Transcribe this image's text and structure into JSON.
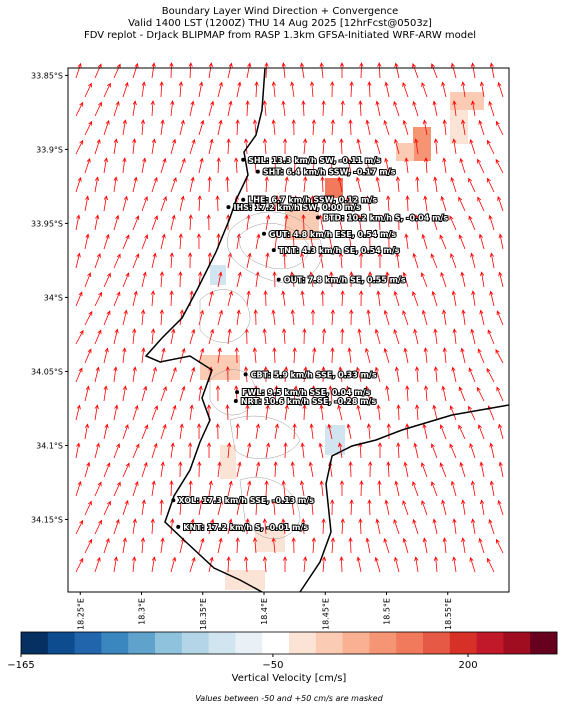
{
  "header": {
    "title_lines": [
      "Boundary Layer Wind Direction + Convergence",
      "Valid 1400 LST (1200Z) THU 14 Aug 2025 [12hrFcst@0503z]",
      "FDV replot - DrJack BLIPMAP from RASP 1.3km GFSA-Initiated WRF-ARW model"
    ]
  },
  "map": {
    "xlim": [
      18.24,
      18.6
    ],
    "ylim": [
      -34.199,
      -33.845
    ],
    "lat_ticks": [
      {
        "value": -33.85,
        "label": "33.85°S"
      },
      {
        "value": -33.9,
        "label": "33.9°S"
      },
      {
        "value": -33.95,
        "label": "33.95°S"
      },
      {
        "value": -34.0,
        "label": "34°S"
      },
      {
        "value": -34.05,
        "label": "34.05°S"
      },
      {
        "value": -34.1,
        "label": "34.1°S"
      },
      {
        "value": -34.15,
        "label": "34.15°S"
      }
    ],
    "lon_ticks": [
      {
        "value": 18.25,
        "label": "18.25°E"
      },
      {
        "value": 18.3,
        "label": "18.3°E"
      },
      {
        "value": 18.35,
        "label": "18.35°E"
      },
      {
        "value": 18.4,
        "label": "18.4°E"
      },
      {
        "value": 18.45,
        "label": "18.45°E"
      },
      {
        "value": 18.5,
        "label": "18.5°E"
      },
      {
        "value": 18.55,
        "label": "18.55°E"
      }
    ],
    "arrow_color": "#ff0000",
    "stations": [
      {
        "label": "SHL: 13.3 km/h SW, -0.11 m/s",
        "lon": 18.383,
        "lat": -33.907
      },
      {
        "label": "SHT: 6.4 km/h SSW, -0.17 m/s",
        "lon": 18.395,
        "lat": -33.915
      },
      {
        "label": "LHE: 6.7 km/h SSW, 0.12 m/s",
        "lon": 18.383,
        "lat": -33.934
      },
      {
        "label": "IHS: 17.2 km/h SW, 0.00 m/s",
        "lon": 18.371,
        "lat": -33.939
      },
      {
        "label": "BTD: 10.2 km/h S, -0.04 m/s",
        "lon": 18.444,
        "lat": -33.946
      },
      {
        "label": "GUT: 4.8 km/h ESE, 0.54 m/s",
        "lon": 18.4,
        "lat": -33.957
      },
      {
        "label": "TNT: 4.3 km/h SE, 0.54 m/s",
        "lon": 18.408,
        "lat": -33.968
      },
      {
        "label": "OUT: 7.8 km/h SE, 0.55 m/s",
        "lon": 18.412,
        "lat": -33.988
      },
      {
        "label": "CBT: 5.9 km/h SSE, 0.33 m/s",
        "lon": 18.385,
        "lat": -34.052
      },
      {
        "label": "FWL: 9.5 km/h SSE, 0.04 m/s",
        "lon": 18.378,
        "lat": -34.064
      },
      {
        "label": "NRT: 10.6 km/h SSE, -0.28 m/s",
        "lon": 18.377,
        "lat": -34.07
      },
      {
        "label": "XOL: 17.3 km/h SSE, -0.13 m/s",
        "lon": 18.326,
        "lat": -34.137
      },
      {
        "label": "KNT: 17.2 km/h S, -0.01 m/s",
        "lon": 18.33,
        "lat": -34.155
      }
    ]
  },
  "colorbar": {
    "label": "Vertical Velocity [cm/s]",
    "ticks": [
      {
        "value": -165,
        "label": "−165"
      },
      {
        "value": -50,
        "label": "−50"
      },
      200
    ],
    "colors": [
      "#053061",
      "#0c4c8f",
      "#2166ac",
      "#3a87c0",
      "#5fa2cc",
      "#8fc2dd",
      "#b4d5e7",
      "#d1e5f0",
      "#e9f1f6",
      "#ffffff",
      "#fbe3d6",
      "#fbcbb4",
      "#f9b093",
      "#f69574",
      "#f07a5b",
      "#e65945",
      "#d73027",
      "#c1182a",
      "#a00d20",
      "#67001f"
    ],
    "note": "Values between -50 and +50 cm/s are masked"
  }
}
